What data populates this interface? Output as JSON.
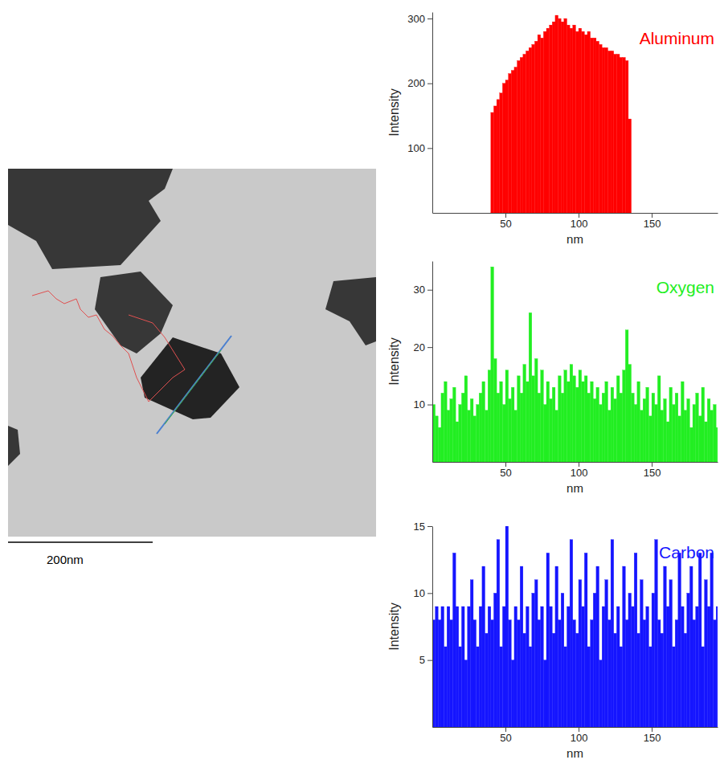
{
  "chart_data": [
    {
      "type": "bar",
      "title": "Aluminum",
      "x_label": "nm",
      "y_label": "Intensity",
      "color": "#ff0000",
      "grid": false,
      "xlim": [
        0,
        195
      ],
      "ylim": [
        0,
        310
      ],
      "xticks": [
        50,
        100,
        150
      ],
      "yticks": [
        100,
        200,
        300
      ],
      "x": [
        0,
        2,
        4,
        6,
        8,
        10,
        12,
        14,
        16,
        18,
        20,
        22,
        24,
        26,
        28,
        30,
        32,
        34,
        36,
        38,
        40,
        42,
        44,
        46,
        48,
        50,
        52,
        54,
        56,
        58,
        60,
        62,
        64,
        66,
        68,
        70,
        72,
        74,
        76,
        78,
        80,
        82,
        84,
        86,
        88,
        90,
        92,
        94,
        96,
        98,
        100,
        102,
        104,
        106,
        108,
        110,
        112,
        114,
        116,
        118,
        120,
        122,
        124,
        126,
        128,
        130,
        132,
        134,
        136,
        138,
        140,
        142,
        144,
        146,
        148,
        150,
        152,
        154,
        156,
        158,
        160,
        162,
        164,
        166,
        168,
        170,
        172,
        174,
        176,
        178,
        180,
        182,
        184,
        186,
        188,
        190,
        192,
        194
      ],
      "values": [
        0,
        0,
        0,
        0,
        0,
        0,
        0,
        0,
        0,
        0,
        0,
        0,
        0,
        0,
        0,
        0,
        0,
        0,
        0,
        0,
        155,
        165,
        175,
        185,
        200,
        205,
        215,
        220,
        225,
        235,
        240,
        245,
        250,
        255,
        260,
        265,
        275,
        270,
        280,
        285,
        290,
        295,
        305,
        300,
        295,
        300,
        290,
        285,
        290,
        280,
        285,
        280,
        275,
        280,
        270,
        270,
        265,
        260,
        255,
        255,
        250,
        250,
        245,
        245,
        240,
        240,
        235,
        145,
        0,
        0,
        0,
        0,
        0,
        0,
        0,
        0,
        0,
        0,
        0,
        0,
        0,
        0,
        0,
        0,
        0,
        0,
        0,
        0,
        0,
        0,
        0,
        0,
        0,
        0,
        0,
        0,
        0,
        0
      ]
    },
    {
      "type": "bar",
      "title": "Oxygen",
      "x_label": "nm",
      "y_label": "Intensity",
      "color": "#22ee22",
      "grid": false,
      "xlim": [
        0,
        195
      ],
      "ylim": [
        0,
        35
      ],
      "xticks": [
        50,
        100,
        150
      ],
      "yticks": [
        10,
        20,
        30
      ],
      "x": [
        0,
        2,
        4,
        6,
        8,
        10,
        12,
        14,
        16,
        18,
        20,
        22,
        24,
        26,
        28,
        30,
        32,
        34,
        36,
        38,
        40,
        42,
        44,
        46,
        48,
        50,
        52,
        54,
        56,
        58,
        60,
        62,
        64,
        66,
        68,
        70,
        72,
        74,
        76,
        78,
        80,
        82,
        84,
        86,
        88,
        90,
        92,
        94,
        96,
        98,
        100,
        102,
        104,
        106,
        108,
        110,
        112,
        114,
        116,
        118,
        120,
        122,
        124,
        126,
        128,
        130,
        132,
        134,
        136,
        138,
        140,
        142,
        144,
        146,
        148,
        150,
        152,
        154,
        156,
        158,
        160,
        162,
        164,
        166,
        168,
        170,
        172,
        174,
        176,
        178,
        180,
        182,
        184,
        186,
        188,
        190,
        192,
        194
      ],
      "values": [
        10,
        8,
        6,
        12,
        14,
        9,
        11,
        13,
        7,
        10,
        12,
        15,
        9,
        11,
        8,
        10,
        12,
        14,
        9,
        16,
        34,
        18,
        12,
        14,
        10,
        16,
        11,
        13,
        9,
        15,
        12,
        17,
        14,
        26,
        15,
        18,
        12,
        16,
        10,
        14,
        11,
        13,
        9,
        15,
        12,
        16,
        14,
        17,
        15,
        13,
        16,
        14,
        15,
        12,
        14,
        11,
        13,
        10,
        12,
        14,
        9,
        13,
        11,
        15,
        12,
        16,
        23,
        17,
        12,
        10,
        14,
        9,
        11,
        13,
        8,
        12,
        10,
        15,
        9,
        11,
        7,
        13,
        10,
        12,
        8,
        14,
        9,
        11,
        6,
        10,
        12,
        8,
        13,
        7,
        11,
        9,
        10,
        6
      ]
    },
    {
      "type": "bar",
      "title": "Carbon",
      "x_label": "nm",
      "y_label": "Intensity",
      "color": "#1515ff",
      "grid": false,
      "xlim": [
        0,
        195
      ],
      "ylim": [
        0,
        15
      ],
      "xticks": [
        50,
        100,
        150
      ],
      "yticks": [
        5,
        10,
        15
      ],
      "x": [
        0,
        2,
        4,
        6,
        8,
        10,
        12,
        14,
        16,
        18,
        20,
        22,
        24,
        26,
        28,
        30,
        32,
        34,
        36,
        38,
        40,
        42,
        44,
        46,
        48,
        50,
        52,
        54,
        56,
        58,
        60,
        62,
        64,
        66,
        68,
        70,
        72,
        74,
        76,
        78,
        80,
        82,
        84,
        86,
        88,
        90,
        92,
        94,
        96,
        98,
        100,
        102,
        104,
        106,
        108,
        110,
        112,
        114,
        116,
        118,
        120,
        122,
        124,
        126,
        128,
        130,
        132,
        134,
        136,
        138,
        140,
        142,
        144,
        146,
        148,
        150,
        152,
        154,
        156,
        158,
        160,
        162,
        164,
        166,
        168,
        170,
        172,
        174,
        176,
        178,
        180,
        182,
        184,
        186,
        188,
        190,
        192,
        194
      ],
      "values": [
        8,
        9,
        8,
        9,
        6,
        9,
        8,
        13,
        9,
        6,
        9,
        5,
        9,
        11,
        8,
        6,
        9,
        12,
        7,
        9,
        8,
        10,
        14,
        6,
        9,
        15,
        8,
        5,
        9,
        8,
        12,
        7,
        9,
        6,
        10,
        11,
        8,
        9,
        5,
        13,
        9,
        7,
        12,
        8,
        10,
        6,
        9,
        14,
        8,
        7,
        11,
        9,
        13,
        6,
        8,
        10,
        12,
        5,
        9,
        11,
        8,
        14,
        7,
        9,
        6,
        12,
        8,
        10,
        9,
        13,
        7,
        11,
        8,
        9,
        6,
        10,
        14,
        8,
        7,
        12,
        9,
        11,
        6,
        8,
        13,
        9,
        7,
        10,
        12,
        8,
        9,
        13,
        6,
        11,
        9,
        13,
        8,
        9
      ]
    }
  ],
  "image": {
    "scale_bar_label": "200nm"
  }
}
